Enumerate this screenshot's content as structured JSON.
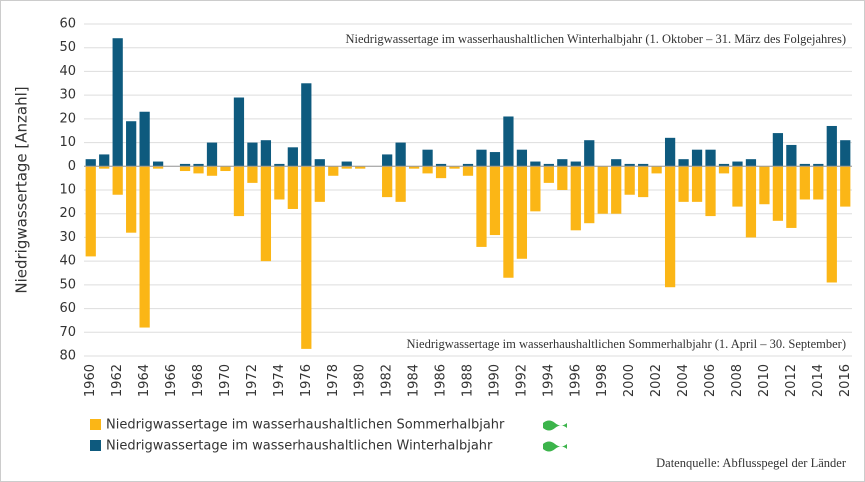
{
  "chart_data": {
    "type": "bar",
    "y_label": "Niedrigwassertage [Anzahl]",
    "annotations": [
      "Niedrigwassertage im wasserhaushaltlichen Winterhalbjahr (1. Oktober – 31. März des Folgejahres)",
      "Niedrigwassertage im wasserhaushaltlichen Sommerhalbjahr (1. April – 30. September)"
    ],
    "source": "Datenquelle: Abflusspegel der Länder",
    "categories": [
      "1960",
      null,
      "1962",
      null,
      "1964",
      null,
      "1966",
      null,
      "1968",
      null,
      "1970",
      null,
      "1972",
      null,
      "1974",
      null,
      "1976",
      null,
      "1978",
      null,
      "1980",
      null,
      "1982",
      null,
      "1984",
      null,
      "1986",
      null,
      "1988",
      null,
      "1990",
      null,
      "1992",
      null,
      "1994",
      null,
      "1996",
      null,
      "1998",
      null,
      "2000",
      null,
      "2002",
      null,
      "2004",
      null,
      "2006",
      null,
      "2008",
      null,
      "2010",
      null,
      "2012",
      null,
      "2014",
      null,
      "2016"
    ],
    "series": [
      {
        "name": "Niedrigwassertage im wasserhaushaltlichen Sommerhalbjahr",
        "color": "#fbb616",
        "values": [
          -38,
          -1,
          -12,
          -28,
          -68,
          -1,
          0,
          -2,
          -3,
          -4,
          -2,
          -21,
          -7,
          -40,
          -14,
          -18,
          -77,
          -15,
          -4,
          -1,
          -1,
          0,
          -13,
          -15,
          -1,
          -3,
          -5,
          -1,
          -4,
          -34,
          -29,
          -47,
          -39,
          -19,
          -7,
          -10,
          -27,
          -24,
          -20,
          -20,
          -12,
          -13,
          -3,
          -51,
          -15,
          -15,
          -21,
          -3,
          -17,
          -30,
          -16,
          -23,
          -26,
          -14,
          -14,
          -49,
          -17
        ]
      },
      {
        "name": "Niedrigwassertage im wasserhaushaltlichen Winterhalbjahr",
        "color": "#0e5a7e",
        "values": [
          3,
          5,
          54,
          19,
          23,
          2,
          0,
          1,
          1,
          10,
          0,
          29,
          10,
          11,
          1,
          8,
          35,
          3,
          0,
          2,
          0,
          0,
          5,
          10,
          0,
          7,
          1,
          0,
          1,
          7,
          6,
          21,
          7,
          2,
          1,
          3,
          2,
          11,
          0,
          3,
          1,
          1,
          0,
          12,
          3,
          7,
          7,
          1,
          2,
          3,
          0,
          14,
          9,
          1,
          1,
          17,
          11
        ]
      }
    ],
    "ylim": [
      -80,
      60
    ],
    "yticks": [
      60,
      50,
      40,
      30,
      20,
      10,
      0,
      {
        "value": -10,
        "label": "10"
      },
      {
        "value": -20,
        "label": "20"
      },
      {
        "value": -30,
        "label": "30"
      },
      {
        "value": -40,
        "label": "40"
      },
      {
        "value": -50,
        "label": "50"
      },
      {
        "value": -60,
        "label": "60"
      },
      {
        "value": -70,
        "label": "70"
      },
      {
        "value": -80,
        "label": "80"
      }
    ],
    "grid": true
  }
}
